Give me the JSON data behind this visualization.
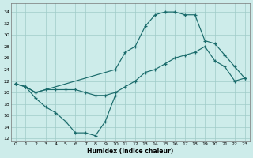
{
  "xlabel": "Humidex (Indice chaleur)",
  "bg_color": "#cdecea",
  "grid_color": "#a0ccc8",
  "line_color": "#1a6b6b",
  "xlim": [
    -0.5,
    23.5
  ],
  "ylim": [
    11.5,
    35.5
  ],
  "yticks": [
    12,
    14,
    16,
    18,
    20,
    22,
    24,
    26,
    28,
    30,
    32,
    34
  ],
  "xticks": [
    0,
    1,
    2,
    3,
    4,
    5,
    6,
    7,
    8,
    9,
    10,
    11,
    12,
    13,
    14,
    15,
    16,
    17,
    18,
    19,
    20,
    21,
    22,
    23
  ],
  "curve_bottom_x": [
    0,
    1,
    2,
    3,
    4,
    5,
    6,
    7,
    8,
    9,
    10
  ],
  "curve_bottom_y": [
    21.5,
    21.0,
    19.0,
    17.5,
    16.5,
    15.0,
    13.0,
    13.0,
    12.5,
    15.0,
    19.5
  ],
  "curve_mid_x": [
    0,
    1,
    2,
    3,
    4,
    5,
    6,
    7,
    8,
    9,
    10,
    11,
    12,
    13,
    14,
    15,
    16,
    17,
    18,
    19,
    20,
    21,
    22,
    23
  ],
  "curve_mid_y": [
    21.5,
    21.0,
    20.0,
    20.5,
    20.5,
    20.5,
    20.5,
    20.0,
    19.5,
    19.5,
    20.0,
    21.0,
    22.0,
    23.5,
    24.0,
    25.0,
    26.0,
    26.5,
    27.0,
    28.0,
    25.5,
    24.5,
    22.0,
    22.5
  ],
  "curve_top_x": [
    0,
    1,
    2,
    10,
    11,
    12,
    13,
    14,
    15,
    16,
    17,
    18,
    19,
    20,
    21,
    22,
    23
  ],
  "curve_top_y": [
    21.5,
    21.0,
    20.0,
    24.0,
    27.0,
    28.0,
    31.5,
    33.5,
    34.0,
    34.0,
    33.5,
    33.5,
    29.0,
    28.5,
    26.5,
    24.5,
    22.5
  ]
}
